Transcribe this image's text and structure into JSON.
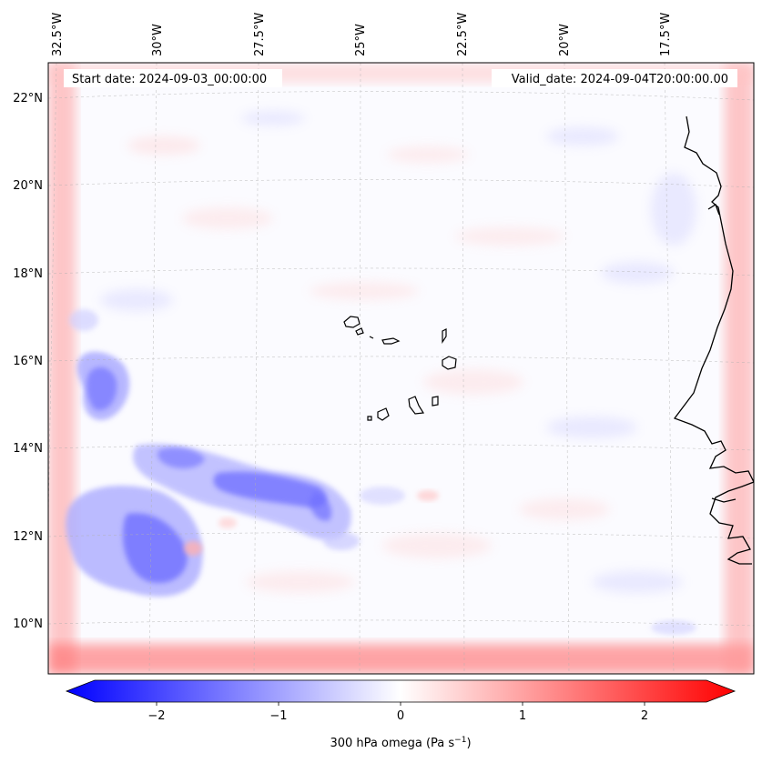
{
  "map": {
    "start_label": "Start date: 2024-09-03_00:00:00",
    "valid_label": "Valid_date: 2024-09-04T20:00:00.00",
    "lon_labels": [
      "32.5°W",
      "30°W",
      "27.5°W",
      "25°W",
      "22.5°W",
      "20°W",
      "17.5°W"
    ],
    "lat_labels": [
      "22°N",
      "20°N",
      "18°N",
      "16°N",
      "14°N",
      "12°N",
      "10°N"
    ],
    "colorbar": {
      "ticks": [
        "−2",
        "−1",
        "0",
        "1",
        "2"
      ],
      "label_main": "300 hPa omega (Pa s",
      "label_sup": "−1",
      "label_end": ")",
      "min": -2.5,
      "max": 2.5
    },
    "colors": {
      "negative": "#0000ff",
      "positive": "#ff0000",
      "neutral": "#ffffff",
      "coast": "#000000",
      "grid": "#b0b0b0"
    }
  }
}
